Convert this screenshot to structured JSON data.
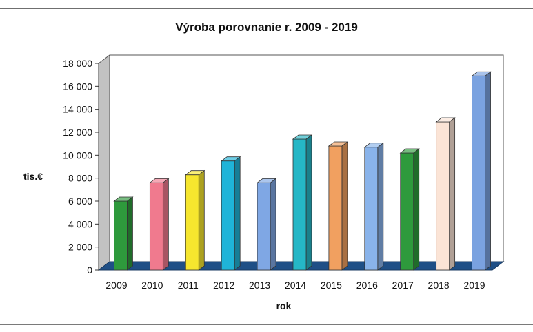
{
  "chart_data": {
    "type": "bar",
    "title": "Výroba porovnanie r. 2009 - 2019",
    "xlabel": "rok",
    "ylabel": "tis.€",
    "ylim": [
      0,
      18000
    ],
    "y_ticks": [
      "0",
      "2 000",
      "4 000",
      "6 000",
      "8 000",
      "10 000",
      "12 000",
      "14 000",
      "16 000",
      "18 000"
    ],
    "categories": [
      "2009",
      "2010",
      "2011",
      "2012",
      "2013",
      "2014",
      "2015",
      "2016",
      "2017",
      "2018",
      "2019"
    ],
    "values": [
      6000,
      7600,
      8300,
      9500,
      7600,
      11400,
      10800,
      10700,
      10200,
      12900,
      16900
    ],
    "bar_colors": [
      "#2e9a3c",
      "#f07a8e",
      "#f6e62e",
      "#1fb4d8",
      "#7fa7e4",
      "#25b7c6",
      "#f1a060",
      "#89b3ea",
      "#2e9a3c",
      "#fbe4d6",
      "#7aa2e0"
    ],
    "grid": false,
    "legend": "none",
    "style": "3d-column"
  }
}
